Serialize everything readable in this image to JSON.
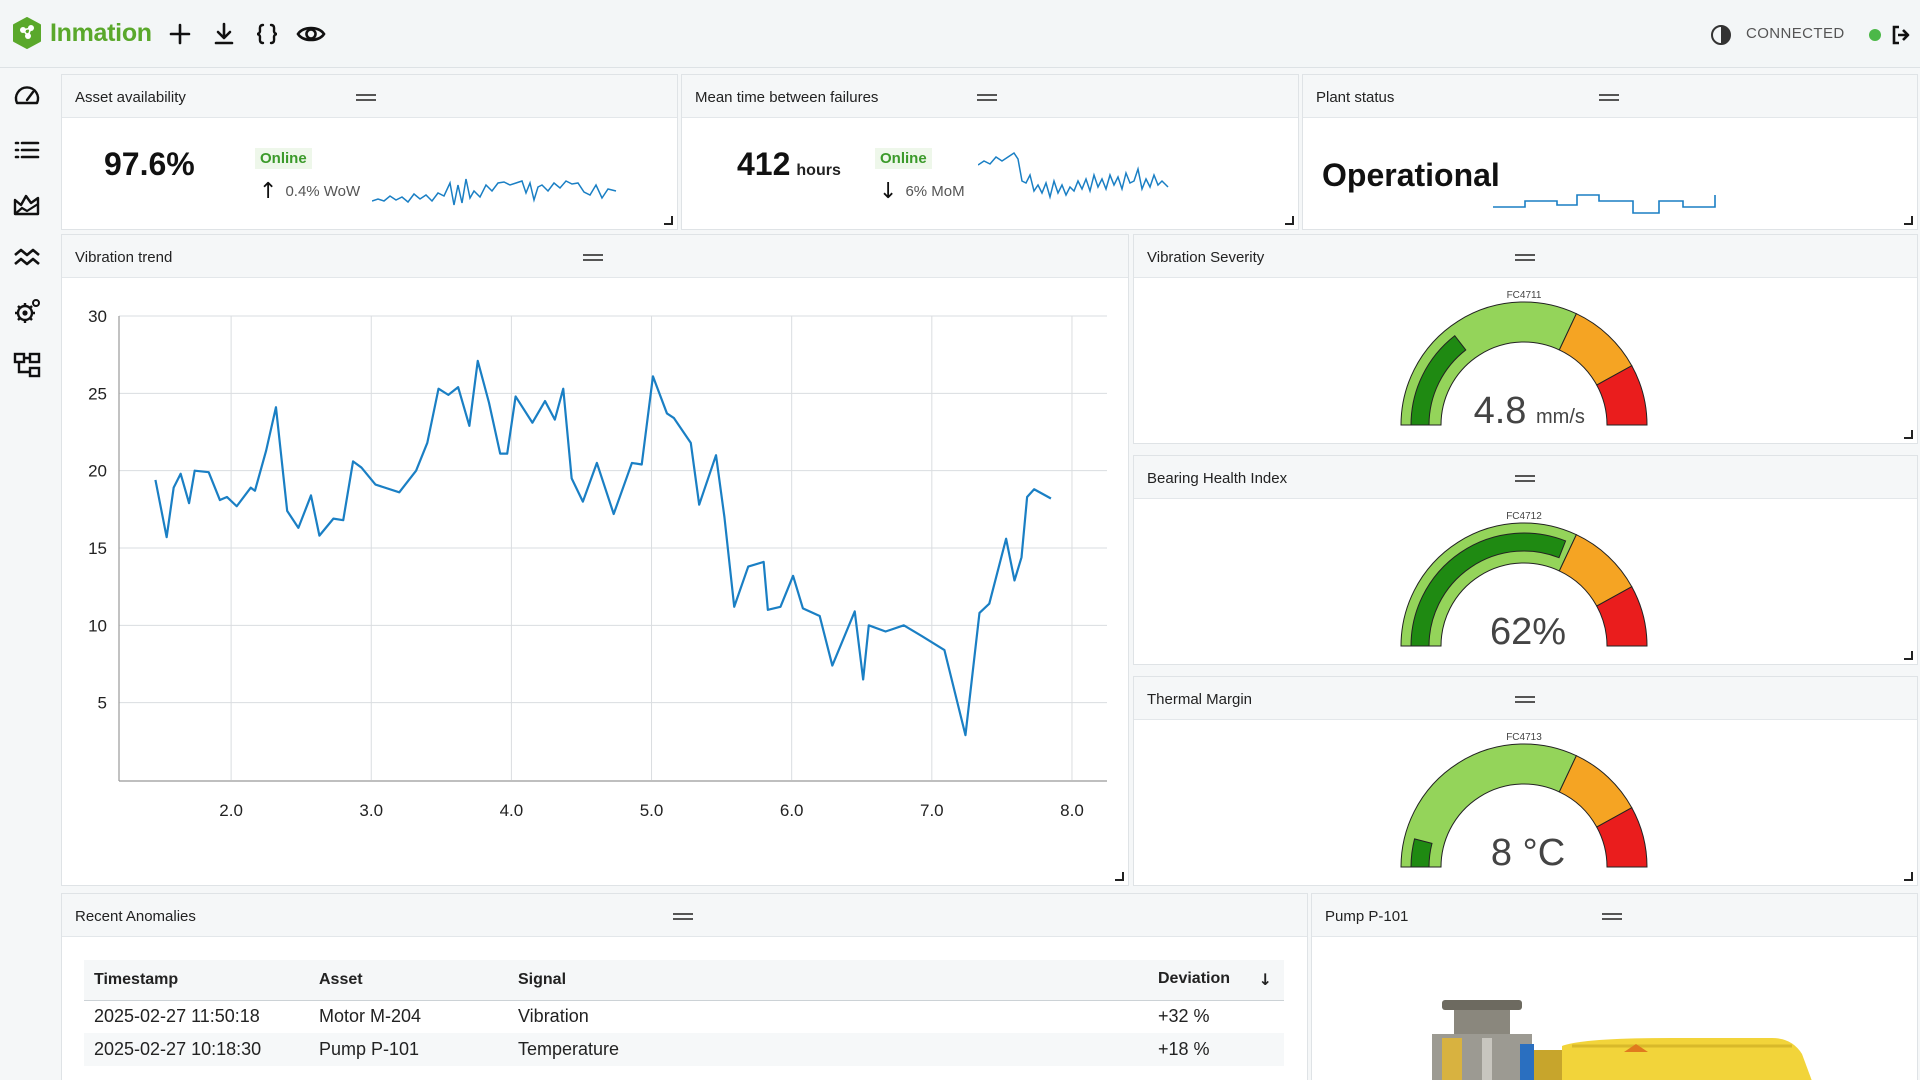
{
  "app": {
    "name": "Inmation",
    "brand_color": "#5aa82b",
    "connection_label": "CONNECTED",
    "connection_color": "#4cb848"
  },
  "toolbar": {
    "icons": [
      "add-icon",
      "download-icon",
      "braces-icon",
      "eye-icon"
    ]
  },
  "sidebar": {
    "icons": [
      "gauge-icon",
      "list-icon",
      "area-chart-icon",
      "trend-icon",
      "settings-icon",
      "hierarchy-icon"
    ]
  },
  "panels": {
    "asset_availability": {
      "title": "Asset availability",
      "value": "97.6%",
      "status": "Online",
      "trend": "0.4% WoW",
      "trend_direction": "up"
    },
    "mtbf": {
      "title": "Mean time between failures",
      "value": "412",
      "unit": "hours",
      "status": "Online",
      "trend": "6% MoM",
      "trend_direction": "down"
    },
    "plant_status": {
      "title": "Plant status",
      "value": "Operational"
    },
    "vibration_trend": {
      "title": "Vibration trend"
    },
    "vibration_severity": {
      "title": "Vibration Severity",
      "tag": "FC4711",
      "value": "4.8",
      "unit": "mm/s",
      "level": 0.29
    },
    "bearing_health": {
      "title": "Bearing Health Index",
      "tag": "FC4712",
      "value": "62%",
      "level": 0.62
    },
    "thermal_margin": {
      "title": "Thermal Margin",
      "tag": "FC4713",
      "value": "8 °C",
      "level": 0.08
    },
    "recent_anomalies": {
      "title": "Recent Anomalies",
      "columns": [
        "Timestamp",
        "Asset",
        "Signal",
        "Deviation"
      ],
      "rows": [
        [
          "2025-02-27 11:50:18",
          "Motor M-204",
          "Vibration",
          "+32 %"
        ],
        [
          "2025-02-27 10:18:30",
          "Pump P-101",
          "Temperature",
          "+18 %"
        ]
      ]
    },
    "pump": {
      "title": "Pump P-101"
    }
  },
  "chart_data": {
    "type": "line",
    "title": "Vibration trend",
    "xlabel": "",
    "ylabel": "",
    "xlim": [
      1.2,
      8.25
    ],
    "ylim": [
      0,
      30
    ],
    "xticks": [
      "2.0",
      "3.0",
      "4.0",
      "5.0",
      "6.0",
      "7.0",
      "8.0"
    ],
    "yticks": [
      "5",
      "10",
      "15",
      "20",
      "25",
      "30"
    ],
    "grid": true,
    "color": "#1a7fc4",
    "series": [
      {
        "x": [
          1.46,
          1.54,
          1.59,
          1.64,
          1.7,
          1.74,
          1.84,
          1.92,
          1.97,
          2.04,
          2.14,
          2.17,
          2.25,
          2.32,
          2.4,
          2.48,
          2.57,
          2.63,
          2.73,
          2.8,
          2.87,
          2.93,
          3.03,
          3.2,
          3.32,
          3.4,
          3.48,
          3.55,
          3.62,
          3.7,
          3.76,
          3.84,
          3.92,
          3.97,
          4.03,
          4.15,
          4.24,
          4.31,
          4.37,
          4.43,
          4.51,
          4.61,
          4.73,
          4.86,
          4.93,
          5.01,
          5.11,
          5.16,
          5.28,
          5.34,
          5.46,
          5.52,
          5.59,
          5.69,
          5.8,
          5.83,
          5.92,
          6.01,
          6.08,
          6.2,
          6.29,
          6.45,
          6.51,
          6.55,
          6.67,
          6.8,
          6.93,
          7.09,
          7.24,
          7.34,
          7.41,
          7.53,
          7.59,
          7.64,
          7.68,
          7.73,
          7.85
        ],
        "y": [
          19.4,
          15.7,
          18.9,
          19.8,
          17.9,
          20.0,
          19.9,
          18.1,
          18.3,
          17.7,
          18.9,
          18.7,
          21.3,
          24.1,
          17.4,
          16.3,
          18.4,
          15.8,
          16.9,
          16.8,
          20.6,
          20.2,
          19.1,
          18.6,
          20.0,
          21.8,
          25.3,
          24.9,
          25.4,
          22.9,
          27.1,
          24.4,
          21.1,
          21.1,
          24.8,
          23.1,
          24.5,
          23.3,
          25.3,
          19.5,
          18.0,
          20.5,
          17.2,
          20.5,
          20.4,
          26.1,
          23.7,
          23.4,
          21.8,
          17.8,
          21.0,
          17.0,
          11.2,
          13.8,
          14.1,
          11.0,
          11.2,
          13.2,
          11.1,
          10.6,
          7.4,
          10.9,
          6.5,
          10.0,
          9.6,
          10.0,
          9.3,
          8.4,
          2.9,
          10.8,
          11.4,
          15.6,
          12.9,
          14.4,
          18.3,
          18.8,
          18.2
        ]
      }
    ]
  }
}
